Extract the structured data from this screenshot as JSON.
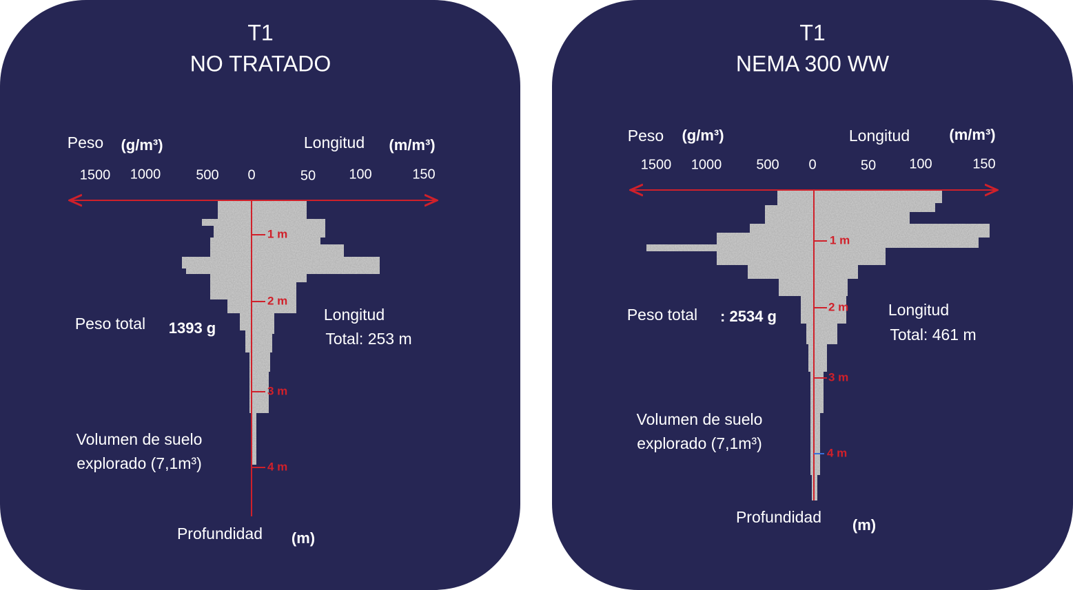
{
  "panels": [
    {
      "title": [
        "T1",
        "NO TRATADO"
      ],
      "weight_label": "Peso",
      "weight_unit": "(g/m³)",
      "length_label": "Longitud",
      "length_unit": "(m/m³)",
      "ticks": [
        "1500",
        "1000",
        "500",
        "0",
        "50",
        "100",
        "150"
      ],
      "depths": [
        "1 m",
        "2 m",
        "3 m",
        "4 m"
      ],
      "total_weight_label": "Peso total",
      "total_weight": "1393 g",
      "total_length": [
        "Longitud",
        "Total: 253 m"
      ],
      "volume": [
        "Volumen de suelo",
        "explorado (7,1m³)"
      ],
      "depth_label": "Profundidad",
      "depth_unit": "(m)"
    },
    {
      "title": [
        "T1",
        "NEMA 300 WW"
      ],
      "weight_label": "Peso",
      "weight_unit": "(g/m³)",
      "length_label": "Longitud",
      "length_unit": "(m/m³)",
      "ticks": [
        "1500",
        "1000",
        "500",
        "0",
        "50",
        "100",
        "150"
      ],
      "depths": [
        "1 m",
        "2 m",
        "3 m",
        "4 m"
      ],
      "total_weight_label": "Peso total",
      "total_weight": ": 2534 g",
      "total_length": [
        "Longitud",
        "Total: 461 m"
      ],
      "volume": [
        "Volumen de suelo",
        "explorado (7,1m³)"
      ],
      "depth_label": "Profundidad",
      "depth_unit": "(m)"
    }
  ]
}
